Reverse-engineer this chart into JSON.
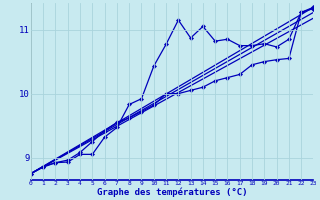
{
  "xlabel": "Graphe des températures (°C)",
  "bg_color": "#c8eaf0",
  "line_color": "#0000bb",
  "grid_color": "#aad4dc",
  "xlim": [
    0,
    23
  ],
  "ylim": [
    8.65,
    11.42
  ],
  "yticks": [
    9,
    10,
    11
  ],
  "xticks": [
    0,
    1,
    2,
    3,
    4,
    5,
    6,
    7,
    8,
    9,
    10,
    11,
    12,
    13,
    14,
    15,
    16,
    17,
    18,
    19,
    20,
    21,
    22,
    23
  ],
  "series1_x": [
    0,
    1,
    2,
    3,
    4,
    5,
    6,
    7,
    8,
    9,
    10,
    11,
    12,
    13,
    14,
    15,
    16,
    17,
    18,
    19,
    20,
    21,
    22,
    23
  ],
  "series1_y": [
    8.75,
    8.85,
    8.92,
    8.93,
    9.05,
    9.05,
    9.32,
    9.47,
    9.83,
    9.92,
    10.43,
    10.77,
    11.15,
    10.87,
    11.05,
    10.82,
    10.85,
    10.75,
    10.75,
    10.78,
    10.73,
    10.85,
    11.27,
    11.33
  ],
  "series2_x": [
    0,
    1,
    2,
    3,
    4,
    5,
    6,
    7,
    8,
    9,
    10,
    11,
    12,
    13,
    14,
    15,
    16,
    17,
    18,
    19,
    20,
    21,
    22,
    23
  ],
  "series2_y": [
    8.75,
    8.86,
    8.92,
    8.96,
    9.08,
    9.25,
    9.42,
    9.55,
    9.62,
    9.72,
    9.82,
    10.0,
    10.0,
    10.05,
    10.1,
    10.2,
    10.25,
    10.3,
    10.45,
    10.5,
    10.53,
    10.55,
    11.27,
    11.35
  ],
  "series3_x": [
    0,
    23
  ],
  "series3_y": [
    8.75,
    11.35
  ],
  "series4_x": [
    0,
    23
  ],
  "series4_y": [
    8.75,
    11.27
  ],
  "series5_x": [
    0,
    23
  ],
  "series5_y": [
    8.75,
    11.18
  ]
}
